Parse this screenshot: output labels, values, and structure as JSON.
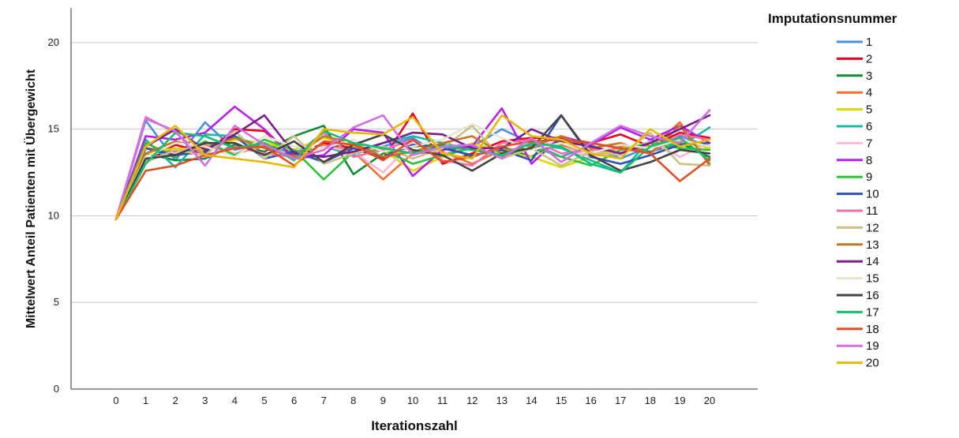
{
  "chart_data": {
    "type": "line",
    "xlabel": "Iterationszahl",
    "ylabel": "Mittelwert Anteil Patienten mit Übergewicht",
    "x": [
      0,
      1,
      2,
      3,
      4,
      5,
      6,
      7,
      8,
      9,
      10,
      11,
      12,
      13,
      14,
      15,
      16,
      17,
      18,
      19,
      20
    ],
    "xlim": [
      0,
      20
    ],
    "ylim": [
      0,
      22
    ],
    "yticks": [
      0,
      5,
      10,
      15,
      20
    ],
    "grid": "horizontal",
    "legend_title": "Imputationsnummer",
    "legend_position": "right",
    "series": [
      {
        "name": "1",
        "color": "#4a90e2",
        "values": [
          9.8,
          15.5,
          13.2,
          15.4,
          13.8,
          14.2,
          13.5,
          14.8,
          13.6,
          14.0,
          14.5,
          13.4,
          14.0,
          15.0,
          14.2,
          13.4,
          14.1,
          13.3,
          14.0,
          14.6,
          14.0
        ]
      },
      {
        "name": "2",
        "color": "#e8001c",
        "values": [
          9.8,
          13.1,
          14.1,
          13.6,
          15.0,
          14.9,
          13.4,
          14.2,
          13.9,
          13.3,
          15.9,
          13.0,
          13.6,
          14.3,
          14.5,
          14.5,
          14.2,
          14.7,
          14.0,
          14.8,
          14.5
        ]
      },
      {
        "name": "3",
        "color": "#138a36",
        "values": [
          9.8,
          13.6,
          13.2,
          13.3,
          14.1,
          13.7,
          14.6,
          15.2,
          12.4,
          13.6,
          14.0,
          14.1,
          13.4,
          14.0,
          13.4,
          14.4,
          14.2,
          13.9,
          13.7,
          14.2,
          13.4
        ]
      },
      {
        "name": "4",
        "color": "#f07030",
        "values": [
          9.8,
          13.9,
          13.7,
          14.1,
          13.6,
          14.0,
          13.3,
          14.1,
          13.7,
          12.1,
          13.6,
          13.7,
          13.0,
          13.8,
          13.9,
          14.1,
          13.6,
          14.0,
          13.9,
          15.4,
          12.9
        ]
      },
      {
        "name": "5",
        "color": "#d8d800",
        "values": [
          9.8,
          13.6,
          13.9,
          13.8,
          14.4,
          14.2,
          13.8,
          14.5,
          14.0,
          13.8,
          12.6,
          13.4,
          14.2,
          13.7,
          13.4,
          12.8,
          13.4,
          13.9,
          14.0,
          14.3,
          13.9
        ]
      },
      {
        "name": "6",
        "color": "#1ab8a5",
        "values": [
          9.8,
          14.4,
          12.8,
          14.7,
          14.6,
          13.9,
          13.7,
          14.0,
          13.5,
          14.2,
          14.6,
          14.2,
          13.8,
          13.6,
          14.1,
          13.9,
          13.2,
          12.5,
          14.4,
          14.0,
          15.1
        ]
      },
      {
        "name": "7",
        "color": "#ffb6d9",
        "values": [
          9.8,
          13.3,
          13.6,
          14.2,
          13.6,
          14.1,
          13.4,
          14.0,
          13.7,
          12.5,
          14.3,
          13.6,
          13.9,
          13.4,
          14.4,
          14.0,
          13.4,
          13.7,
          14.3,
          13.4,
          14.2
        ]
      },
      {
        "name": "8",
        "color": "#b620e8",
        "values": [
          9.8,
          14.6,
          14.4,
          14.8,
          16.3,
          15.0,
          13.3,
          13.5,
          15.0,
          14.8,
          12.3,
          13.8,
          14.0,
          16.2,
          13.0,
          14.6,
          14.1,
          15.1,
          14.4,
          15.2,
          14.2
        ]
      },
      {
        "name": "9",
        "color": "#30c040",
        "values": [
          9.8,
          14.2,
          13.4,
          14.3,
          13.5,
          14.4,
          13.8,
          12.1,
          13.7,
          13.8,
          13.0,
          13.5,
          13.9,
          13.4,
          14.0,
          13.4,
          12.9,
          13.8,
          14.2,
          13.9,
          13.8
        ]
      },
      {
        "name": "10",
        "color": "#3050b8",
        "values": [
          9.8,
          13.9,
          13.5,
          13.7,
          14.6,
          13.3,
          13.7,
          13.1,
          13.9,
          13.4,
          14.1,
          13.9,
          13.5,
          13.8,
          13.2,
          15.8,
          13.4,
          13.0,
          13.5,
          14.1,
          14.2
        ]
      },
      {
        "name": "11",
        "color": "#f070a8",
        "values": [
          9.8,
          15.7,
          14.8,
          13.4,
          14.0,
          13.6,
          13.4,
          14.8,
          13.4,
          13.8,
          14.4,
          13.2,
          12.9,
          14.2,
          14.4,
          13.6,
          13.8,
          13.9,
          13.6,
          14.7,
          14.4
        ]
      },
      {
        "name": "12",
        "color": "#c8c088",
        "values": [
          9.8,
          13.1,
          13.8,
          13.5,
          14.9,
          13.3,
          14.6,
          13.0,
          13.6,
          14.0,
          13.3,
          13.9,
          15.2,
          13.3,
          13.9,
          12.9,
          13.7,
          13.5,
          14.8,
          13.0,
          12.9
        ]
      },
      {
        "name": "13",
        "color": "#c07828",
        "values": [
          9.8,
          13.6,
          14.3,
          13.9,
          14.5,
          13.9,
          13.4,
          14.6,
          14.2,
          13.4,
          13.7,
          14.2,
          14.6,
          13.6,
          14.0,
          14.6,
          13.9,
          14.2,
          13.6,
          15.2,
          13.0
        ]
      },
      {
        "name": "14",
        "color": "#7a1f8a",
        "values": [
          9.8,
          14.0,
          15.0,
          13.8,
          14.7,
          15.8,
          13.6,
          13.4,
          13.7,
          14.2,
          14.8,
          14.7,
          13.9,
          13.9,
          15.0,
          14.3,
          14.0,
          13.6,
          14.2,
          15.0,
          15.8
        ]
      },
      {
        "name": "15",
        "color": "#e8e4d0",
        "values": [
          9.8,
          13.4,
          14.2,
          14.0,
          13.4,
          14.6,
          14.0,
          13.9,
          14.4,
          13.7,
          14.0,
          14.4,
          15.3,
          14.5,
          13.8,
          14.2,
          13.6,
          14.1,
          13.9,
          14.4,
          14.0
        ]
      },
      {
        "name": "16",
        "color": "#444444",
        "values": [
          9.8,
          13.3,
          13.5,
          14.2,
          14.2,
          13.5,
          14.3,
          13.1,
          14.1,
          14.7,
          13.8,
          13.5,
          12.6,
          13.6,
          13.9,
          15.8,
          13.5,
          12.6,
          13.1,
          13.8,
          13.6
        ]
      },
      {
        "name": "17",
        "color": "#10c070",
        "values": [
          9.8,
          13.0,
          14.8,
          14.6,
          13.9,
          14.2,
          13.2,
          14.9,
          14.2,
          13.9,
          13.6,
          14.0,
          13.8,
          13.5,
          14.2,
          14.0,
          13.0,
          12.5,
          14.0,
          14.5,
          13.2
        ]
      },
      {
        "name": "18",
        "color": "#e05028",
        "values": [
          9.8,
          12.6,
          12.9,
          13.5,
          13.9,
          14.0,
          12.9,
          14.3,
          14.1,
          13.2,
          14.4,
          13.1,
          13.4,
          14.0,
          14.3,
          14.4,
          14.2,
          13.9,
          13.6,
          12.0,
          13.3
        ]
      },
      {
        "name": "19",
        "color": "#d070e0",
        "values": [
          9.8,
          15.6,
          14.9,
          12.9,
          15.2,
          14.1,
          13.3,
          13.8,
          15.1,
          15.8,
          13.5,
          14.0,
          14.1,
          13.3,
          14.5,
          13.1,
          14.2,
          15.2,
          14.6,
          14.2,
          16.1
        ]
      },
      {
        "name": "20",
        "color": "#e8b800",
        "values": [
          9.8,
          14.0,
          15.2,
          13.5,
          13.3,
          13.1,
          12.8,
          15.0,
          14.8,
          14.7,
          15.7,
          13.6,
          13.3,
          15.8,
          14.6,
          14.4,
          13.6,
          13.3,
          15.0,
          14.0,
          14.4
        ]
      }
    ]
  }
}
